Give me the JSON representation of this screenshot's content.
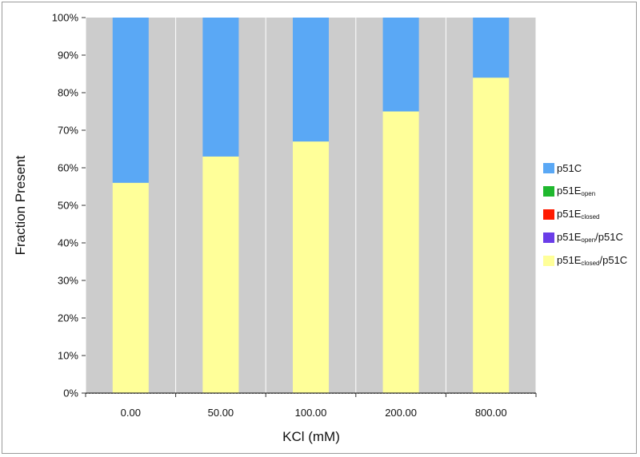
{
  "chart_data": {
    "type": "bar",
    "stacked": true,
    "xlabel": "KCl (mM)",
    "ylabel": "Fraction Present",
    "categories": [
      "0.00",
      "50.00",
      "100.00",
      "200.00",
      "800.00"
    ],
    "y_tick_labels": [
      "0%",
      "10%",
      "20%",
      "30%",
      "40%",
      "50%",
      "60%",
      "70%",
      "80%",
      "90%",
      "100%"
    ],
    "ylim": [
      0,
      100
    ],
    "grid": "vertical",
    "legend_placement": "right",
    "series": [
      {
        "name": "p51Eclosed/p51C",
        "base": "p51E",
        "sub": "closed",
        "suffix": "/p51C",
        "color": "#ffff99",
        "values": [
          56,
          63,
          67,
          75,
          84
        ]
      },
      {
        "name": "p51Eopen/p51C",
        "base": "p51E",
        "sub": "open",
        "suffix": "/p51C",
        "color": "#6a3de8",
        "values": [
          0,
          0,
          0,
          0,
          0
        ]
      },
      {
        "name": "p51Eclosed",
        "base": "p51E",
        "sub": "closed",
        "suffix": "",
        "color": "#ff1a00",
        "values": [
          0,
          0,
          0,
          0,
          0
        ]
      },
      {
        "name": "p51Eopen",
        "base": "p51E",
        "sub": "open",
        "suffix": "",
        "color": "#1fb82e",
        "values": [
          0,
          0,
          0,
          0,
          0
        ]
      },
      {
        "name": "p51C",
        "base": "p51C",
        "sub": "",
        "suffix": "",
        "color": "#5aa8f5",
        "values": [
          44,
          37,
          33,
          25,
          16
        ]
      }
    ],
    "legend_order": [
      "p51C",
      "p51Eopen",
      "p51Eclosed",
      "p51Eopen/p51C",
      "p51Eclosed/p51C"
    ],
    "colors": {
      "plot_background": "#cccccc",
      "gridline": "#ffffff"
    }
  }
}
